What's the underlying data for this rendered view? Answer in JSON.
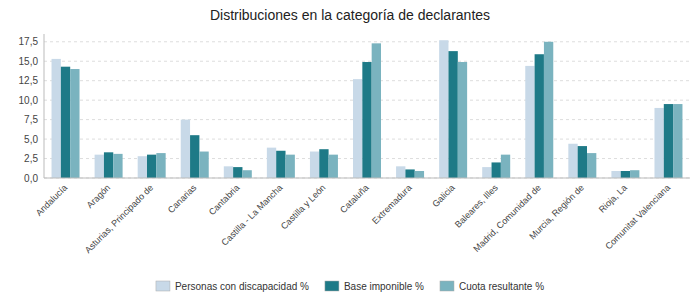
{
  "chart_data": {
    "type": "bar",
    "title": "Distribuciones en la categoría de declarantes",
    "categories": [
      "Andalucía",
      "Aragón",
      "Asturias, Principado de",
      "Canarias",
      "Cantabria",
      "Castilla - La Mancha",
      "Castilla y León",
      "Cataluña",
      "Extremadura",
      "Galicia",
      "Baleares, Illes",
      "Madrid, Comunidad de",
      "Murcia, Región de",
      "Rioja, La",
      "Comunitat Valenciana"
    ],
    "series": [
      {
        "name": "Personas con discapacidad %",
        "color": "#c8d9e8",
        "values": [
          15.3,
          3.0,
          2.8,
          7.5,
          1.5,
          3.9,
          3.4,
          12.7,
          1.5,
          17.7,
          1.4,
          14.4,
          4.4,
          0.9,
          9.0
        ]
      },
      {
        "name": "Base imponible %",
        "color": "#1e7a87",
        "values": [
          14.3,
          3.3,
          3.0,
          5.5,
          1.4,
          3.5,
          3.7,
          14.9,
          1.1,
          16.3,
          2.0,
          15.9,
          4.1,
          0.9,
          9.5
        ]
      },
      {
        "name": "Cuota resultante %",
        "color": "#7ab3bf",
        "values": [
          14.0,
          3.1,
          3.2,
          3.4,
          1.0,
          3.0,
          3.0,
          17.3,
          0.9,
          14.9,
          3.0,
          17.5,
          3.2,
          1.0,
          9.5
        ]
      }
    ],
    "ylim": [
      0,
      18.5
    ],
    "yticks": [
      {
        "value": 0.0,
        "label": "0,0"
      },
      {
        "value": 2.5,
        "label": "2,5"
      },
      {
        "value": 5.0,
        "label": "5,0"
      },
      {
        "value": 7.5,
        "label": "7,5"
      },
      {
        "value": 10.0,
        "label": "10,0"
      },
      {
        "value": 12.5,
        "label": "12,5"
      },
      {
        "value": 15.0,
        "label": "15,0"
      },
      {
        "value": 17.5,
        "label": "17,5"
      }
    ],
    "grid": true,
    "legend": "bottom"
  }
}
